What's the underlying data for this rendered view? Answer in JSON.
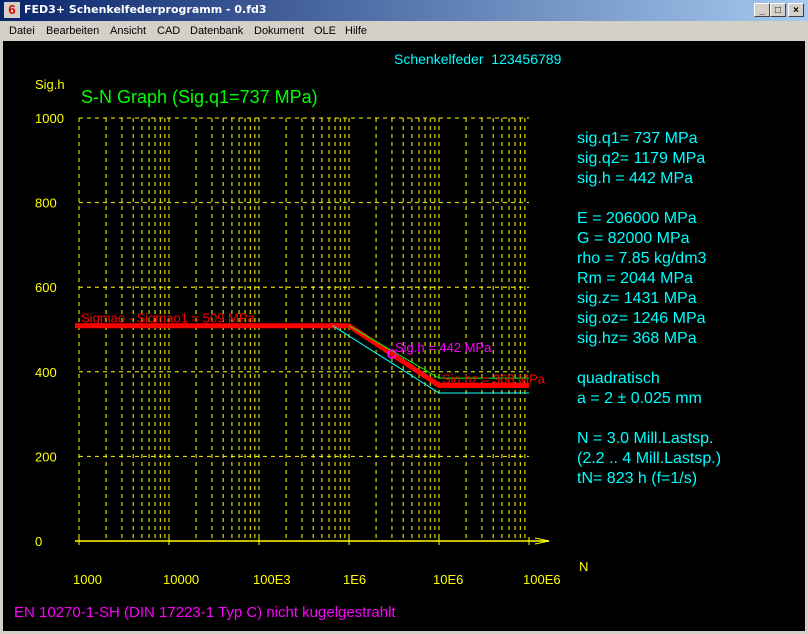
{
  "window": {
    "title": "FED3+  Schenkelfederprogramm  -  0.fd3",
    "buttons": {
      "minimize": "_",
      "maximize": "□",
      "close": "×"
    }
  },
  "menu": [
    "Datei",
    "Bearbeiten",
    "Ansicht",
    "CAD",
    "Datenbank",
    "Dokument",
    "OLE",
    "Hilfe"
  ],
  "header": {
    "spring": "Schenkelfeder  123456789"
  },
  "material": "EN 10270-1-SH (DIN 17223-1 Typ C) nicht kugelgestrahlt",
  "info": {
    "group1": [
      "sig.q1=  737 MPa",
      "sig.q2= 1179 MPa",
      "sig.h =  442 MPa"
    ],
    "group2": [
      "E = 206000 MPa",
      "G =  82000 MPa",
      "rho =  7.85 kg/dm3",
      "Rm = 2044 MPa",
      "sig.z= 1431 MPa",
      "sig.oz= 1246 MPa",
      "sig.hz=  368 MPa"
    ],
    "group3": [
      "quadratisch",
      "a = 2 ± 0.025 mm"
    ],
    "group4": [
      "N = 3.0 Mill.Lastsp.",
      "(2.2 .. 4 Mill.Lastsp.)",
      "tN= 823 h  (f=1/s)"
    ]
  },
  "chart_data": {
    "type": "line",
    "title": "S-N Graph (Sig.q1=737 MPa)",
    "xlabel": "N",
    "ylabel": "Sig.h",
    "xscale": "log",
    "xlim": [
      1000,
      100000000
    ],
    "ylim": [
      0,
      1000
    ],
    "xticks": [
      1000,
      10000,
      100000,
      1000000,
      10000000,
      100000000
    ],
    "xtick_labels": [
      "1000",
      "10000",
      "100E3",
      "1E6",
      "10E6",
      "100E6"
    ],
    "yticks": [
      0,
      200,
      400,
      600,
      800,
      1000
    ],
    "ytick_labels": [
      "0",
      "200",
      "400",
      "600",
      "800",
      "1000"
    ],
    "grid": true,
    "colors": {
      "grid": "#ffff00",
      "main": "#ff0000",
      "upper": "#00ff00",
      "lower": "#00ffff",
      "point": "#ff00ff",
      "title": "#00ff00"
    },
    "series": [
      {
        "role": "main",
        "points": [
          [
            1000,
            509
          ],
          [
            1000000,
            509
          ],
          [
            10000000,
            368
          ],
          [
            100000000,
            368
          ]
        ]
      },
      {
        "role": "upper",
        "points": [
          [
            1000000,
            509
          ],
          [
            10000000,
            385
          ],
          [
            100000000,
            385
          ]
        ]
      },
      {
        "role": "lower",
        "points": [
          [
            660000,
            509
          ],
          [
            10000000,
            350
          ],
          [
            100000000,
            350
          ]
        ]
      }
    ],
    "point": {
      "x": 3000000,
      "y": 442
    },
    "annotations": [
      "Sigmao - Sigmao1 = 509 MPa",
      "Sig.h = 442 MPa",
      "Sig.hz = 368 MPa"
    ]
  }
}
